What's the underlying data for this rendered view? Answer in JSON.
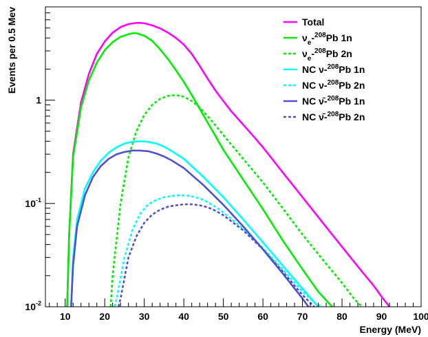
{
  "chart_data": {
    "type": "line",
    "xlabel": "Energy (MeV)",
    "ylabel": "Events per 0.5 Mev",
    "xlim": [
      5,
      100
    ],
    "ylim": [
      0.01,
      8
    ],
    "yscale": "log",
    "x_ticks": [
      10,
      20,
      30,
      40,
      50,
      60,
      70,
      80,
      90,
      100
    ],
    "y_ticks": [
      {
        "value": 0.01,
        "base": "10",
        "exp": "-2"
      },
      {
        "value": 0.1,
        "base": "10",
        "exp": "-1"
      },
      {
        "value": 1,
        "base": "1",
        "exp": ""
      }
    ],
    "legend_position": "top-right",
    "series": [
      {
        "name": "Total",
        "legend": {
          "pre": "Total",
          "sub": "",
          "mid": "",
          "sup": "",
          "post": ""
        },
        "color": "#ff00ff",
        "dash": "solid",
        "points": [
          [
            10.5,
            0.01
          ],
          [
            11,
            0.05
          ],
          [
            12,
            0.3
          ],
          [
            14,
            0.95
          ],
          [
            16,
            1.8
          ],
          [
            18,
            2.8
          ],
          [
            20,
            3.7
          ],
          [
            22,
            4.5
          ],
          [
            24,
            5.1
          ],
          [
            26,
            5.45
          ],
          [
            28,
            5.6
          ],
          [
            29,
            5.6
          ],
          [
            30,
            5.55
          ],
          [
            32,
            5.3
          ],
          [
            34,
            4.95
          ],
          [
            36,
            4.5
          ],
          [
            38,
            4.0
          ],
          [
            40,
            3.45
          ],
          [
            42,
            2.8
          ],
          [
            44,
            2.15
          ],
          [
            46,
            1.62
          ],
          [
            48,
            1.24
          ],
          [
            50,
            0.98
          ],
          [
            52,
            0.78
          ],
          [
            55,
            0.58
          ],
          [
            58,
            0.43
          ],
          [
            60,
            0.35
          ],
          [
            65,
            0.2
          ],
          [
            70,
            0.115
          ],
          [
            75,
            0.066
          ],
          [
            80,
            0.038
          ],
          [
            85,
            0.022
          ],
          [
            88,
            0.016
          ],
          [
            90,
            0.0125
          ],
          [
            92,
            0.01
          ]
        ]
      },
      {
        "name": "νe-208Pb 1n",
        "legend": {
          "pre": "ν",
          "sub": "e",
          "mid": "-",
          "sup": "208",
          "post": "Pb 1n"
        },
        "color": "#00ee00",
        "dash": "solid",
        "points": [
          [
            10.5,
            0.01
          ],
          [
            11,
            0.05
          ],
          [
            12,
            0.28
          ],
          [
            14,
            0.85
          ],
          [
            16,
            1.55
          ],
          [
            18,
            2.3
          ],
          [
            20,
            3.05
          ],
          [
            22,
            3.65
          ],
          [
            24,
            4.1
          ],
          [
            26,
            4.35
          ],
          [
            27,
            4.45
          ],
          [
            28,
            4.45
          ],
          [
            30,
            4.2
          ],
          [
            32,
            3.75
          ],
          [
            34,
            3.1
          ],
          [
            36,
            2.5
          ],
          [
            38,
            1.95
          ],
          [
            40,
            1.5
          ],
          [
            42,
            1.12
          ],
          [
            44,
            0.83
          ],
          [
            46,
            0.61
          ],
          [
            48,
            0.45
          ],
          [
            50,
            0.33
          ],
          [
            55,
            0.17
          ],
          [
            60,
            0.088
          ],
          [
            65,
            0.044
          ],
          [
            70,
            0.023
          ],
          [
            74,
            0.014
          ],
          [
            77.5,
            0.01
          ]
        ]
      },
      {
        "name": "νe-208Pb 2n",
        "legend": {
          "pre": "ν",
          "sub": "e",
          "mid": "-",
          "sup": "208",
          "post": "Pb 2n"
        },
        "color": "#00ee00",
        "dash": "dot",
        "points": [
          [
            21.5,
            0.01
          ],
          [
            22,
            0.02
          ],
          [
            24,
            0.1
          ],
          [
            26,
            0.28
          ],
          [
            28,
            0.5
          ],
          [
            30,
            0.72
          ],
          [
            32,
            0.9
          ],
          [
            34,
            1.03
          ],
          [
            36,
            1.1
          ],
          [
            38,
            1.12
          ],
          [
            40,
            1.08
          ],
          [
            42,
            0.98
          ],
          [
            44,
            0.85
          ],
          [
            46,
            0.7
          ],
          [
            48,
            0.57
          ],
          [
            50,
            0.46
          ],
          [
            55,
            0.27
          ],
          [
            60,
            0.16
          ],
          [
            65,
            0.09
          ],
          [
            70,
            0.05
          ],
          [
            75,
            0.029
          ],
          [
            80,
            0.017
          ],
          [
            83,
            0.012
          ],
          [
            85,
            0.01
          ]
        ]
      },
      {
        "name": "NC ν-208Pb 1n",
        "legend": {
          "pre": "NC ν",
          "sub": "",
          "mid": "-",
          "sup": "208",
          "post": "Pb 1n"
        },
        "color": "#00ffff",
        "dash": "solid",
        "points": [
          [
            11.5,
            0.01
          ],
          [
            12,
            0.03
          ],
          [
            13,
            0.07
          ],
          [
            15,
            0.14
          ],
          [
            17,
            0.2
          ],
          [
            19,
            0.26
          ],
          [
            21,
            0.31
          ],
          [
            23,
            0.35
          ],
          [
            25,
            0.38
          ],
          [
            27,
            0.395
          ],
          [
            29,
            0.4
          ],
          [
            31,
            0.395
          ],
          [
            33,
            0.38
          ],
          [
            35,
            0.355
          ],
          [
            37,
            0.32
          ],
          [
            40,
            0.27
          ],
          [
            45,
            0.18
          ],
          [
            50,
            0.115
          ],
          [
            55,
            0.07
          ],
          [
            60,
            0.042
          ],
          [
            65,
            0.025
          ],
          [
            70,
            0.015
          ],
          [
            73,
            0.011
          ],
          [
            74,
            0.01
          ]
        ]
      },
      {
        "name": "NC ν-208Pb 2n",
        "legend": {
          "pre": "NC ν",
          "sub": "",
          "mid": "-",
          "sup": "208",
          "post": "Pb 2n"
        },
        "color": "#00ffff",
        "dash": "dot",
        "points": [
          [
            22.5,
            0.01
          ],
          [
            23,
            0.012
          ],
          [
            25,
            0.03
          ],
          [
            27,
            0.055
          ],
          [
            29,
            0.08
          ],
          [
            31,
            0.098
          ],
          [
            33,
            0.108
          ],
          [
            35,
            0.115
          ],
          [
            37,
            0.118
          ],
          [
            39,
            0.12
          ],
          [
            41,
            0.119
          ],
          [
            43,
            0.115
          ],
          [
            45,
            0.108
          ],
          [
            48,
            0.093
          ],
          [
            50,
            0.082
          ],
          [
            55,
            0.057
          ],
          [
            60,
            0.037
          ],
          [
            65,
            0.023
          ],
          [
            70,
            0.014
          ],
          [
            73,
            0.011
          ],
          [
            75,
            0.01
          ]
        ]
      },
      {
        "name": "NC ν̄-208Pb 1n",
        "legend": {
          "pre": "NC ν̄",
          "sub": "",
          "mid": "-",
          "sup": "208",
          "post": "Pb 1n"
        },
        "color": "#5050cc",
        "dash": "solid",
        "points": [
          [
            11.5,
            0.01
          ],
          [
            12,
            0.025
          ],
          [
            13,
            0.06
          ],
          [
            15,
            0.12
          ],
          [
            17,
            0.18
          ],
          [
            19,
            0.23
          ],
          [
            21,
            0.27
          ],
          [
            23,
            0.3
          ],
          [
            25,
            0.315
          ],
          [
            27,
            0.325
          ],
          [
            29,
            0.325
          ],
          [
            31,
            0.32
          ],
          [
            33,
            0.305
          ],
          [
            35,
            0.285
          ],
          [
            37,
            0.26
          ],
          [
            40,
            0.22
          ],
          [
            45,
            0.15
          ],
          [
            50,
            0.097
          ],
          [
            55,
            0.06
          ],
          [
            60,
            0.036
          ],
          [
            65,
            0.021
          ],
          [
            70,
            0.012
          ],
          [
            71.5,
            0.01
          ]
        ]
      },
      {
        "name": "NC ν̄-208Pb 2n",
        "legend": {
          "pre": "NC ν̄",
          "sub": "",
          "mid": "-",
          "sup": "208",
          "post": "Pb 2n"
        },
        "color": "#5050cc",
        "dash": "dot",
        "points": [
          [
            23.5,
            0.01
          ],
          [
            24,
            0.012
          ],
          [
            26,
            0.03
          ],
          [
            28,
            0.048
          ],
          [
            30,
            0.065
          ],
          [
            32,
            0.078
          ],
          [
            34,
            0.087
          ],
          [
            36,
            0.093
          ],
          [
            38,
            0.096
          ],
          [
            40,
            0.098
          ],
          [
            42,
            0.098
          ],
          [
            44,
            0.096
          ],
          [
            46,
            0.092
          ],
          [
            48,
            0.085
          ],
          [
            50,
            0.077
          ],
          [
            55,
            0.055
          ],
          [
            60,
            0.036
          ],
          [
            65,
            0.022
          ],
          [
            70,
            0.013
          ],
          [
            73,
            0.01
          ]
        ]
      }
    ]
  }
}
